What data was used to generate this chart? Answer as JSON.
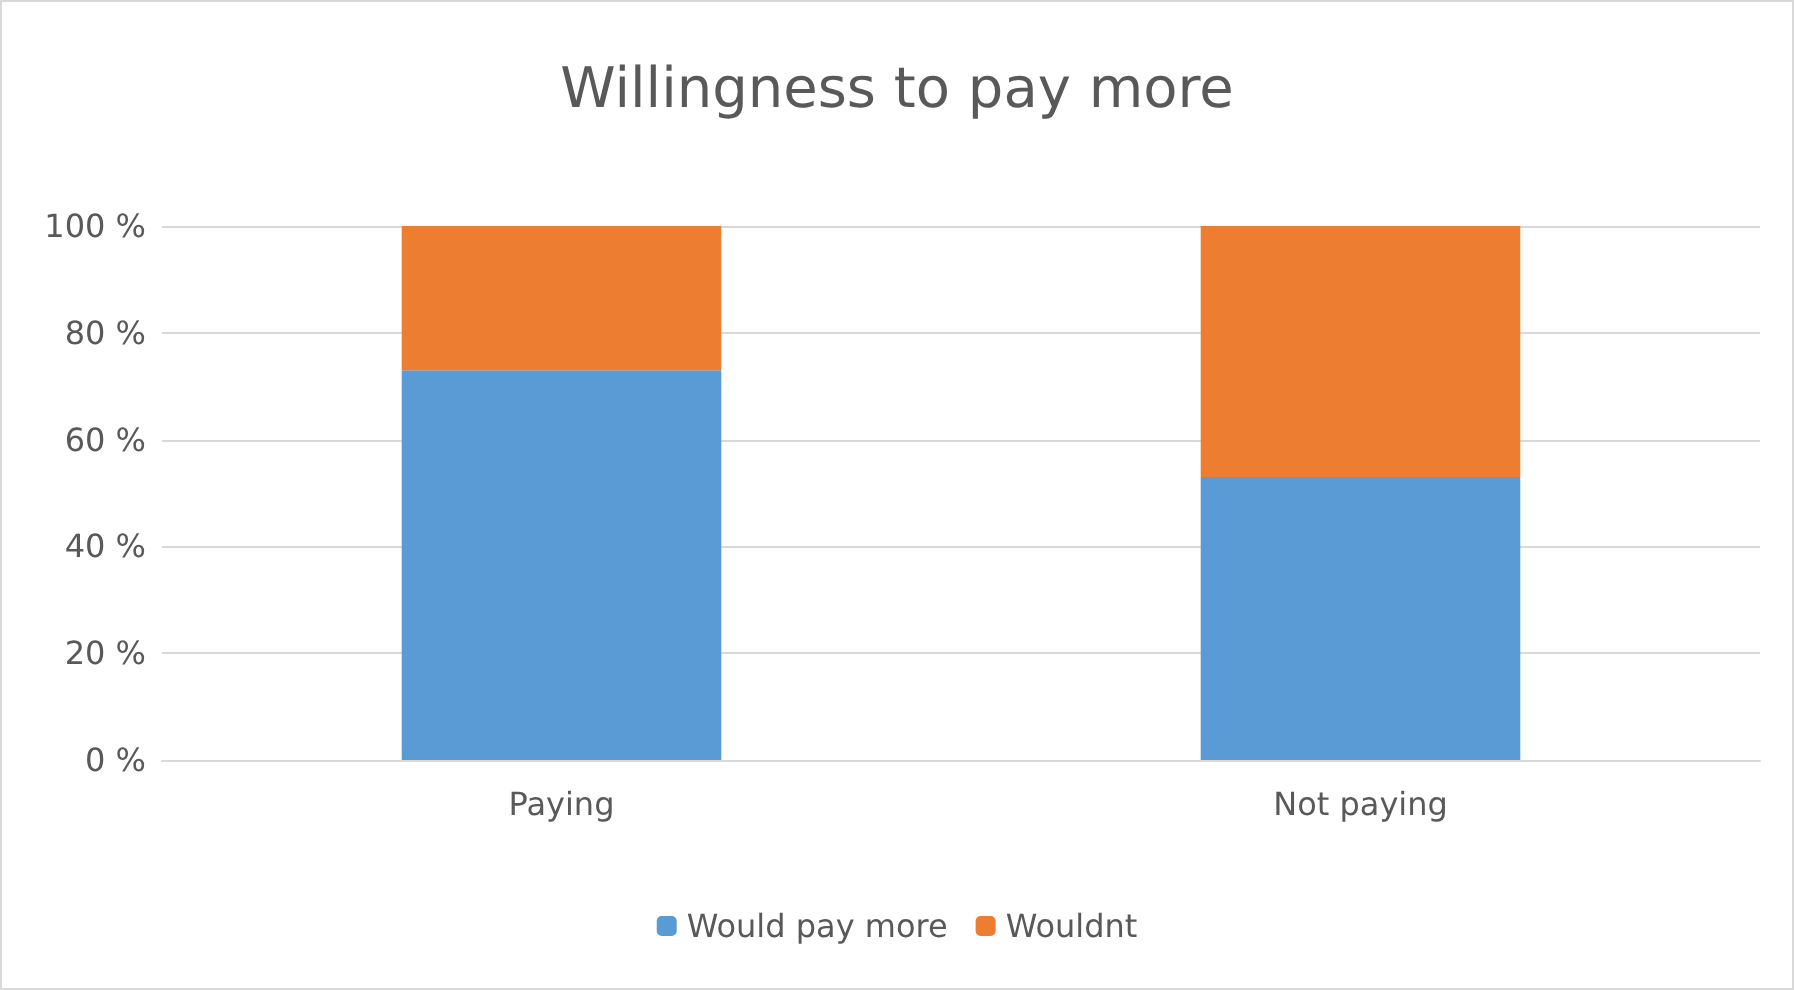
{
  "chart_data": {
    "type": "bar",
    "title": "Willingness to pay more",
    "categories": [
      "Paying",
      "Not paying"
    ],
    "series": [
      {
        "name": "Would pay more",
        "color": "#5b9bd5",
        "values": [
          73,
          53
        ]
      },
      {
        "name": "Wouldnt",
        "color": "#ed7d31",
        "values": [
          27,
          47
        ]
      }
    ],
    "stacked": true,
    "ylim": [
      0,
      100
    ],
    "yticks": [
      {
        "value": 0,
        "label": "0 %"
      },
      {
        "value": 20,
        "label": "20 %"
      },
      {
        "value": 40,
        "label": "40 %"
      },
      {
        "value": 60,
        "label": "60 %"
      },
      {
        "value": 80,
        "label": "80 %"
      },
      {
        "value": 100,
        "label": "100 %"
      }
    ],
    "grid": "y",
    "legend": "bottom"
  }
}
